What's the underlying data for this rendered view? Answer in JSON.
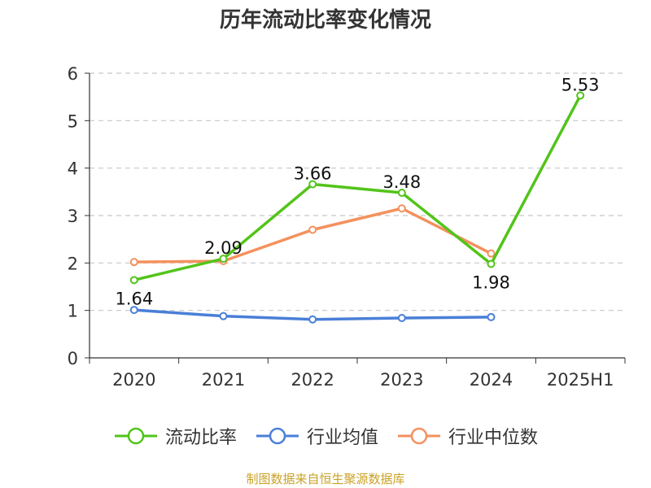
{
  "chart_data": {
    "type": "line",
    "title": "历年流动比率变化情况",
    "categories": [
      "2020",
      "2021",
      "2022",
      "2023",
      "2024",
      "2025H1"
    ],
    "ylim": [
      0,
      6
    ],
    "yticks": [
      0,
      1,
      2,
      3,
      4,
      5,
      6
    ],
    "grid": true,
    "legend_position": "bottom",
    "series": [
      {
        "name": "流动比率",
        "color": "#52c41a",
        "values": [
          1.64,
          2.09,
          3.66,
          3.48,
          1.98,
          5.53
        ],
        "show_labels": true
      },
      {
        "name": "行业均值",
        "color": "#4a7fd8",
        "values": [
          1.01,
          0.88,
          0.81,
          0.84,
          0.86,
          null
        ],
        "show_labels": false
      },
      {
        "name": "行业中位数",
        "color": "#f4915e",
        "values": [
          2.02,
          2.04,
          2.7,
          3.15,
          2.2,
          null
        ],
        "show_labels": false
      }
    ]
  },
  "footer": {
    "source": "制图数据来自恒生聚源数据库"
  }
}
